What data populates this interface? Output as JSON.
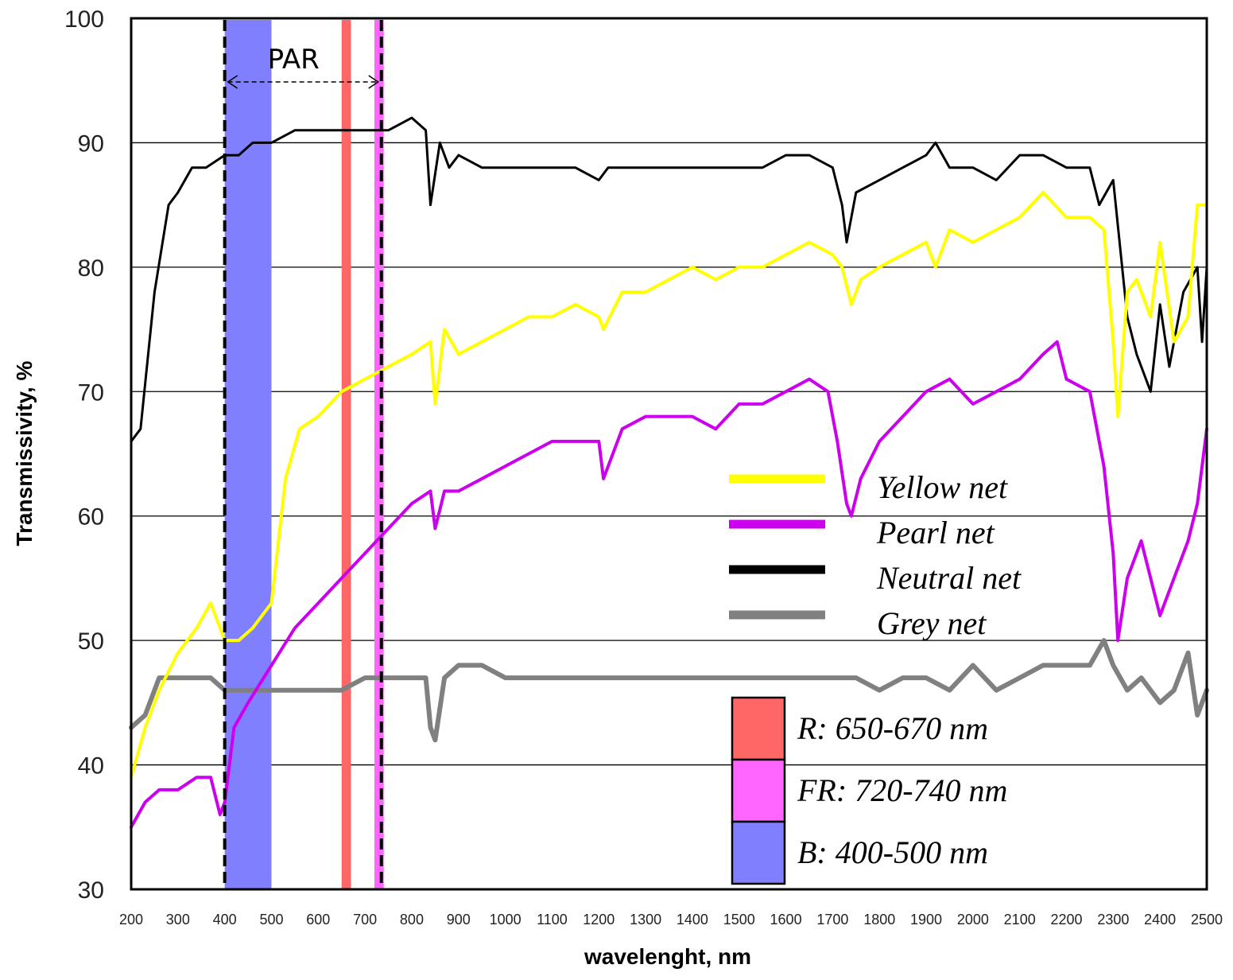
{
  "chart_data": {
    "type": "line",
    "xlabel": "wavelenght, nm",
    "ylabel": "Transmissivity, %",
    "xlim": [
      200,
      2500
    ],
    "ylim": [
      30,
      100
    ],
    "x_ticks": [
      200,
      300,
      400,
      500,
      600,
      700,
      800,
      900,
      1000,
      1100,
      1200,
      1300,
      1400,
      1500,
      1600,
      1700,
      1800,
      1900,
      2000,
      2100,
      2200,
      2300,
      2400,
      2500
    ],
    "y_ticks": [
      30,
      40,
      50,
      60,
      70,
      80,
      90,
      100
    ],
    "grid": "horizontal",
    "series": [
      {
        "name": "Yellow net",
        "color": "#ffff00",
        "x": [
          200,
          230,
          260,
          300,
          340,
          370,
          400,
          430,
          460,
          500,
          530,
          560,
          600,
          650,
          700,
          750,
          800,
          840,
          850,
          870,
          900,
          950,
          1000,
          1050,
          1100,
          1150,
          1200,
          1210,
          1250,
          1300,
          1350,
          1400,
          1450,
          1500,
          1550,
          1600,
          1650,
          1700,
          1720,
          1740,
          1760,
          1800,
          1850,
          1900,
          1920,
          1950,
          2000,
          2050,
          2100,
          2150,
          2200,
          2250,
          2280,
          2300,
          2310,
          2330,
          2350,
          2380,
          2400,
          2430,
          2460,
          2480,
          2500
        ],
        "values": [
          39,
          43,
          46,
          49,
          51,
          53,
          50,
          50,
          51,
          53,
          63,
          67,
          68,
          70,
          71,
          72,
          73,
          74,
          69,
          75,
          73,
          74,
          75,
          76,
          76,
          77,
          76,
          75,
          78,
          78,
          79,
          80,
          79,
          80,
          80,
          81,
          82,
          81,
          80,
          77,
          79,
          80,
          81,
          82,
          80,
          83,
          82,
          83,
          84,
          86,
          84,
          84,
          83,
          74,
          68,
          78,
          79,
          76,
          82,
          74,
          76,
          85,
          85
        ]
      },
      {
        "name": "Pearl net",
        "color": "#cc00ee",
        "x": [
          200,
          230,
          260,
          300,
          340,
          370,
          390,
          400,
          420,
          450,
          500,
          550,
          600,
          650,
          700,
          750,
          800,
          840,
          850,
          870,
          900,
          950,
          1000,
          1050,
          1100,
          1150,
          1200,
          1210,
          1250,
          1300,
          1350,
          1400,
          1450,
          1500,
          1550,
          1600,
          1650,
          1690,
          1710,
          1730,
          1740,
          1760,
          1800,
          1850,
          1900,
          1950,
          2000,
          2050,
          2100,
          2150,
          2180,
          2200,
          2250,
          2280,
          2300,
          2310,
          2330,
          2360,
          2400,
          2430,
          2460,
          2480,
          2500
        ],
        "values": [
          35,
          37,
          38,
          38,
          39,
          39,
          36,
          37,
          43,
          45,
          48,
          51,
          53,
          55,
          57,
          59,
          61,
          62,
          59,
          62,
          62,
          63,
          64,
          65,
          66,
          66,
          66,
          63,
          67,
          68,
          68,
          68,
          67,
          69,
          69,
          70,
          71,
          70,
          66,
          61,
          60,
          63,
          66,
          68,
          70,
          71,
          69,
          70,
          71,
          73,
          74,
          71,
          70,
          64,
          57,
          50,
          55,
          58,
          52,
          55,
          58,
          61,
          67
        ]
      },
      {
        "name": "Neutral net",
        "color": "#000000",
        "x": [
          200,
          220,
          250,
          280,
          300,
          330,
          360,
          400,
          430,
          460,
          500,
          550,
          600,
          650,
          700,
          750,
          800,
          830,
          840,
          860,
          880,
          900,
          950,
          1000,
          1050,
          1100,
          1150,
          1200,
          1220,
          1250,
          1300,
          1350,
          1400,
          1450,
          1500,
          1550,
          1600,
          1650,
          1700,
          1720,
          1730,
          1750,
          1800,
          1850,
          1900,
          1920,
          1950,
          2000,
          2050,
          2100,
          2150,
          2200,
          2250,
          2270,
          2300,
          2330,
          2350,
          2380,
          2400,
          2420,
          2450,
          2480,
          2490,
          2500
        ],
        "values": [
          66,
          67,
          78,
          85,
          86,
          88,
          88,
          89,
          89,
          90,
          90,
          91,
          91,
          91,
          91,
          91,
          92,
          91,
          85,
          90,
          88,
          89,
          88,
          88,
          88,
          88,
          88,
          87,
          88,
          88,
          88,
          88,
          88,
          88,
          88,
          88,
          89,
          89,
          88,
          85,
          82,
          86,
          87,
          88,
          89,
          90,
          88,
          88,
          87,
          89,
          89,
          88,
          88,
          85,
          87,
          76,
          73,
          70,
          77,
          72,
          78,
          80,
          74,
          80
        ]
      },
      {
        "name": "Grey net",
        "color": "#808080",
        "x": [
          200,
          230,
          260,
          300,
          340,
          370,
          400,
          450,
          500,
          550,
          600,
          650,
          700,
          750,
          800,
          830,
          840,
          850,
          870,
          900,
          950,
          1000,
          1050,
          1100,
          1150,
          1200,
          1250,
          1300,
          1350,
          1400,
          1450,
          1500,
          1550,
          1600,
          1650,
          1700,
          1750,
          1800,
          1850,
          1900,
          1950,
          2000,
          2050,
          2100,
          2150,
          2200,
          2250,
          2280,
          2300,
          2330,
          2360,
          2400,
          2430,
          2460,
          2480,
          2500
        ],
        "values": [
          43,
          44,
          47,
          47,
          47,
          47,
          46,
          46,
          46,
          46,
          46,
          46,
          47,
          47,
          47,
          47,
          43,
          42,
          47,
          48,
          48,
          47,
          47,
          47,
          47,
          47,
          47,
          47,
          47,
          47,
          47,
          47,
          47,
          47,
          47,
          47,
          47,
          46,
          47,
          47,
          46,
          48,
          46,
          47,
          48,
          48,
          48,
          50,
          48,
          46,
          47,
          45,
          46,
          49,
          44,
          46
        ]
      }
    ],
    "bands": [
      {
        "label": "B:   400-500 nm",
        "from": 400,
        "to": 500,
        "color": "#8080ff"
      },
      {
        "label": "R:   650-670 nm",
        "from": 650,
        "to": 670,
        "color": "#ff6666"
      },
      {
        "label": "FR: 720-740 nm",
        "from": 720,
        "to": 740,
        "color": "#ff66ff"
      }
    ],
    "par": {
      "label": "PAR",
      "from": 400,
      "to": 735
    }
  }
}
